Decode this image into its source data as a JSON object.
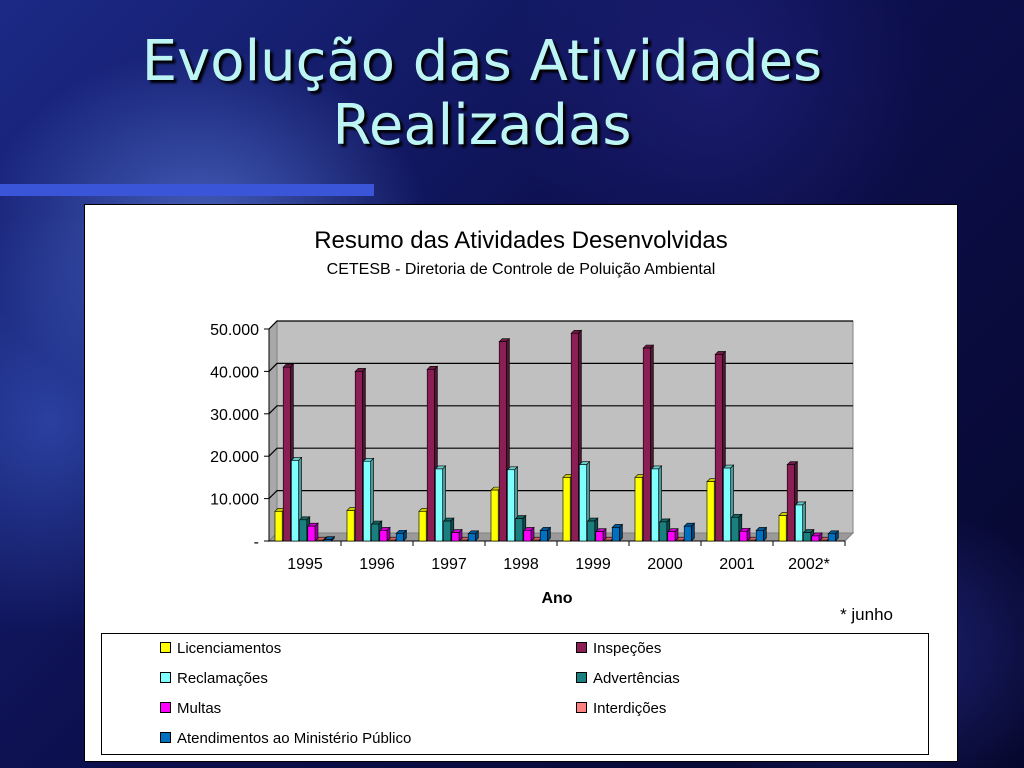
{
  "slide": {
    "title_line1": "Evolução das Atividades",
    "title_line2": "Realizadas"
  },
  "chart_data": {
    "type": "bar",
    "title": "Resumo das Atividades Desenvolvidas",
    "subtitle": "CETESB - Diretoria de Controle de Poluição Ambiental",
    "xlabel": "Ano",
    "ylabel": "",
    "ylim": [
      0,
      50000
    ],
    "yticks": [
      "-",
      "10.000",
      "20.000",
      "30.000",
      "40.000",
      "50.000"
    ],
    "categories": [
      "1995",
      "1996",
      "1997",
      "1998",
      "1999",
      "2000",
      "2001",
      "2002*"
    ],
    "note": "* junho",
    "grid": true,
    "legend_position": "bottom",
    "series": [
      {
        "name": "Licenciamentos",
        "color": "#ffff00",
        "values": [
          7000,
          7200,
          7000,
          12000,
          15000,
          15000,
          14000,
          6000
        ]
      },
      {
        "name": "Inspeções",
        "color": "#8b1f55",
        "values": [
          41000,
          40000,
          40500,
          47000,
          49000,
          45500,
          44000,
          18000
        ]
      },
      {
        "name": "Reclamações",
        "color": "#80ffff",
        "values": [
          19000,
          18800,
          17000,
          16800,
          18000,
          17000,
          17200,
          8500
        ]
      },
      {
        "name": "Advertências",
        "color": "#1a7f7f",
        "values": [
          5000,
          4000,
          4700,
          5300,
          4700,
          4500,
          5600,
          2000
        ]
      },
      {
        "name": "Multas",
        "color": "#ff00ff",
        "values": [
          3500,
          2500,
          2000,
          2500,
          2200,
          2200,
          2300,
          1200
        ]
      },
      {
        "name": "Interdições",
        "color": "#ff8080",
        "values": [
          200,
          200,
          200,
          200,
          200,
          200,
          200,
          200
        ]
      },
      {
        "name": "Atendimentos ao Ministério Público",
        "color": "#0070c0",
        "values": [
          300,
          1800,
          1700,
          2500,
          3200,
          3500,
          2500,
          1700
        ]
      }
    ]
  }
}
